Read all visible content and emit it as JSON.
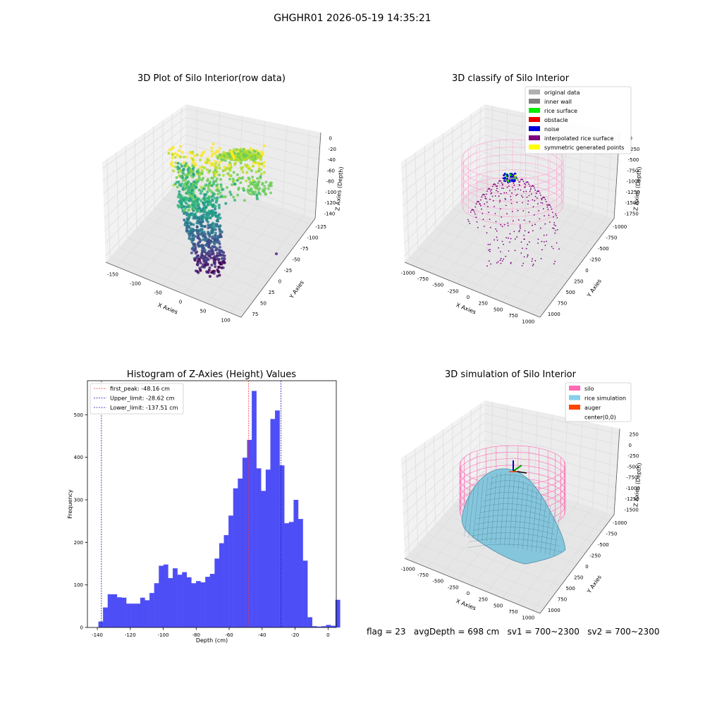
{
  "figure": {
    "suptitle": "GHGHR01 2026-05-19 14:35:21",
    "footer": "flag = 23   avgDepth = 698 cm   sv1 = 700~2300   sv2 = 700~2300"
  },
  "chart_data": [
    {
      "type": "scatter",
      "projection": "3d",
      "title": "3D Plot of Silo Interior(row data)",
      "xlabel": "X Axies",
      "ylabel": "Y Axies",
      "zlabel": "Z Axies (Depth)",
      "xticks": [
        -150,
        -100,
        -50,
        0,
        50,
        100
      ],
      "yticks": [
        75,
        50,
        25,
        0,
        -25,
        -50,
        -75,
        -100,
        -125
      ],
      "zticks": [
        0,
        -20,
        -40,
        -60,
        -80,
        -100,
        -120,
        -140
      ],
      "colormap": "viridis",
      "grid": true
    },
    {
      "type": "scatter",
      "projection": "3d",
      "title": "3D classify of Silo Interior",
      "xlabel": "X Axies",
      "ylabel": "Y Axies",
      "zlabel": "Z Axies (Depth)",
      "xticks": [
        -1000,
        -750,
        -500,
        -250,
        0,
        250,
        500,
        750,
        1000
      ],
      "yticks": [
        1000,
        750,
        500,
        250,
        0,
        -250,
        -500,
        -750,
        -1000
      ],
      "zticks": [
        0,
        -250,
        -500,
        -750,
        -1000,
        -1250,
        -1500,
        -1750
      ],
      "legend_position": "top-right",
      "legend": [
        {
          "label": "original data",
          "color": "#b0b0b0"
        },
        {
          "label": "inner wall",
          "color": "#808080"
        },
        {
          "label": "rice surface",
          "color": "#00ee00"
        },
        {
          "label": "obstacle",
          "color": "#ee0000"
        },
        {
          "label": "noise",
          "color": "#0000dd"
        },
        {
          "label": "interpolated rice surface",
          "color": "#800080"
        },
        {
          "label": "symmetric generated points",
          "color": "#ffff00"
        }
      ],
      "grid": true
    },
    {
      "type": "bar",
      "title": "Histogram of Z-Axies (Height) Values",
      "xlabel": "Depth (cm)",
      "ylabel": "Frequency",
      "xlim": [
        -146,
        5
      ],
      "ylim": [
        0,
        580
      ],
      "xticks": [
        -140,
        -120,
        -100,
        -80,
        -60,
        -40,
        -20,
        0
      ],
      "yticks": [
        0,
        100,
        200,
        300,
        400,
        500
      ],
      "bar_color": "#4545f5",
      "bin_start": -139.35,
      "bin_width": 2.82,
      "values": [
        14,
        47,
        78,
        78,
        71,
        70,
        56,
        56,
        56,
        70,
        64,
        81,
        104,
        145,
        148,
        116,
        139,
        124,
        130,
        118,
        104,
        109,
        106,
        119,
        126,
        162,
        198,
        217,
        263,
        327,
        350,
        399,
        441,
        556,
        374,
        321,
        371,
        490,
        510,
        381,
        245,
        248,
        300,
        255,
        157,
        24,
        3,
        2,
        3,
        6,
        4,
        65
      ],
      "vlines": [
        {
          "label": "first_peak: -48.16 cm",
          "x": -48.16,
          "color": "#ff3030"
        },
        {
          "label": "Upper_limit: -28.62 cm",
          "x": -28.62,
          "color": "#1a1ab0"
        },
        {
          "label": "Lower_limit: -137.51 cm",
          "x": -137.51,
          "color": "#1a1ab0"
        }
      ],
      "legend_position": "top-left",
      "grid": false
    },
    {
      "type": "surface",
      "projection": "3d",
      "title": "3D simulation of Silo Interior",
      "xlabel": "X Axies",
      "ylabel": "Y Axies",
      "zlabel": "Z Axies (Depth)",
      "xticks": [
        -1000,
        -750,
        -500,
        -250,
        0,
        250,
        500,
        750,
        1000
      ],
      "yticks": [
        1000,
        750,
        500,
        250,
        0,
        -250,
        -500,
        -750,
        -1000
      ],
      "zticks": [
        250,
        0,
        -250,
        -500,
        -750,
        -1000,
        -1250,
        -1500
      ],
      "legend_position": "top-right",
      "legend": [
        {
          "label": "silo",
          "color": "#ff69b4"
        },
        {
          "label": "rice simulation",
          "color": "#87ceeb"
        },
        {
          "label": "auger",
          "color": "#ff4500"
        },
        {
          "label": "center(0,0)",
          "color": "none"
        }
      ],
      "grid": true
    }
  ]
}
